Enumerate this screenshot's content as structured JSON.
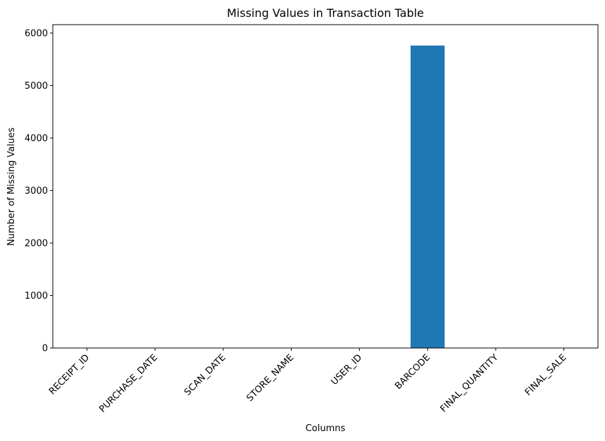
{
  "chart_data": {
    "type": "bar",
    "title": "Missing Values in Transaction Table",
    "xlabel": "Columns",
    "ylabel": "Number of Missing Values",
    "categories": [
      "RECEIPT_ID",
      "PURCHASE_DATE",
      "SCAN_DATE",
      "STORE_NAME",
      "USER_ID",
      "BARCODE",
      "FINAL_QUANTITY",
      "FINAL_SALE"
    ],
    "values": [
      0,
      0,
      0,
      0,
      0,
      5762,
      0,
      0
    ],
    "ylim": [
      0,
      6000
    ],
    "yticks": [
      0,
      1000,
      2000,
      3000,
      4000,
      5000,
      6000
    ],
    "grid": false,
    "bar_color": "#1f77b4"
  }
}
